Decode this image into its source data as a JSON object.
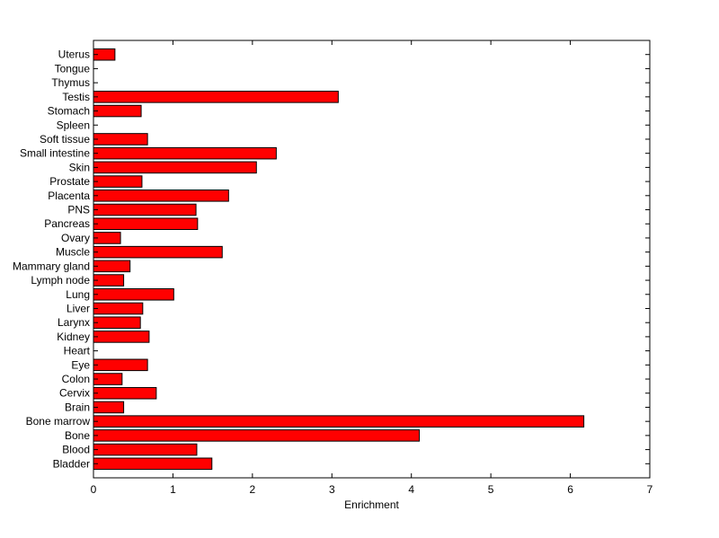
{
  "chart_data": {
    "type": "bar",
    "orientation": "horizontal",
    "title": "",
    "xlabel": "Enrichment",
    "ylabel": "",
    "xlim": [
      0,
      7
    ],
    "xticks": [
      "0",
      "1",
      "2",
      "3",
      "4",
      "5",
      "6",
      "7"
    ],
    "grid": false,
    "legend": "none",
    "bar_color": "#ff0000",
    "edge_color": "#000000",
    "categories": [
      "Bladder",
      "Blood",
      "Bone",
      "Bone marrow",
      "Brain",
      "Cervix",
      "Colon",
      "Eye",
      "Heart",
      "Kidney",
      "Larynx",
      "Liver",
      "Lung",
      "Lymph node",
      "Mammary gland",
      "Muscle",
      "Ovary",
      "Pancreas",
      "PNS",
      "Placenta",
      "Prostate",
      "Skin",
      "Small intestine",
      "Soft tissue",
      "Spleen",
      "Stomach",
      "Testis",
      "Thymus",
      "Tongue",
      "Uterus"
    ],
    "values": [
      1.49,
      1.3,
      4.1,
      6.17,
      0.38,
      0.79,
      0.36,
      0.68,
      0,
      0.7,
      0.59,
      0.62,
      1.01,
      0.38,
      0.46,
      1.62,
      0.34,
      1.31,
      1.29,
      1.7,
      0.61,
      2.05,
      2.3,
      0.68,
      0,
      0.6,
      3.08,
      0,
      0,
      0.27
    ]
  }
}
